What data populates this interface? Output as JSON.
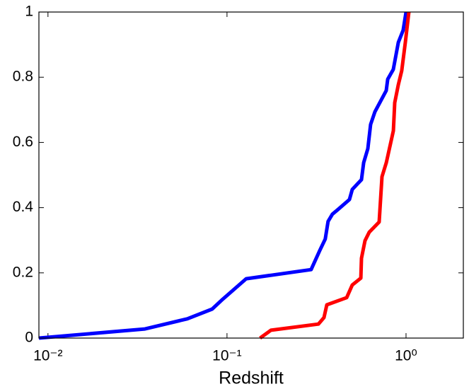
{
  "chart_data": {
    "type": "line",
    "xlabel": "Redshift",
    "log_x": true,
    "xlim": [
      0.0089,
      2.09
    ],
    "ylim": [
      0,
      1
    ],
    "xticks": [
      {
        "value": 0.01,
        "label": "10⁻²"
      },
      {
        "value": 0.1,
        "label": "10⁻¹"
      },
      {
        "value": 1,
        "label": "10⁰"
      }
    ],
    "yticks": [
      0,
      0.2,
      0.4,
      0.6,
      0.8,
      1
    ],
    "series": [
      {
        "color": "#0000ff",
        "x": [
          0.0089,
          0.0348,
          0.06,
          0.0826,
          0.0946,
          0.128,
          0.295,
          0.33,
          0.354,
          0.367,
          0.388,
          0.418,
          0.483,
          0.501,
          0.564,
          0.58,
          0.612,
          0.634,
          0.67,
          0.775,
          0.79,
          0.849,
          0.906,
          0.964,
          1.0
        ],
        "values": [
          0,
          0.028,
          0.059,
          0.089,
          0.119,
          0.182,
          0.21,
          0.269,
          0.304,
          0.358,
          0.38,
          0.395,
          0.425,
          0.456,
          0.486,
          0.538,
          0.581,
          0.655,
          0.694,
          0.759,
          0.794,
          0.824,
          0.907,
          0.944,
          1.0
        ]
      },
      {
        "color": "#ff0000",
        "x": [
          0.153,
          0.176,
          0.324,
          0.348,
          0.361,
          0.466,
          0.501,
          0.559,
          0.564,
          0.59,
          0.623,
          0.708,
          0.734,
          0.776,
          0.85,
          0.865,
          0.906,
          0.946,
          0.991,
          1.037
        ],
        "values": [
          0,
          0.024,
          0.043,
          0.063,
          0.102,
          0.124,
          0.163,
          0.184,
          0.245,
          0.299,
          0.325,
          0.356,
          0.495,
          0.538,
          0.636,
          0.722,
          0.777,
          0.82,
          0.907,
          1.0
        ]
      }
    ]
  }
}
